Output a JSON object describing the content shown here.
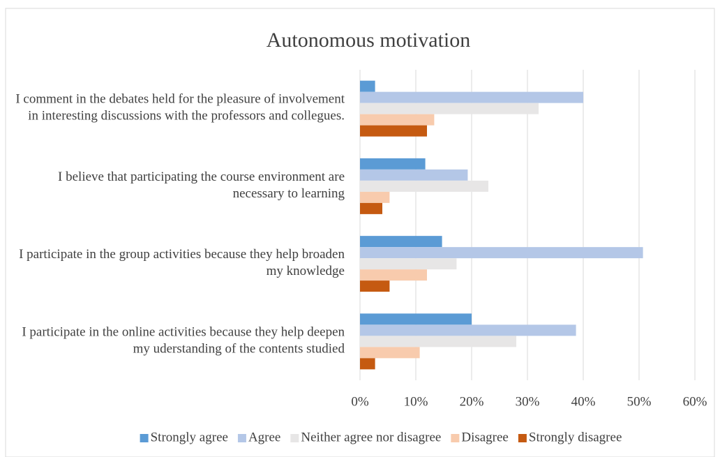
{
  "chart_data": {
    "type": "bar",
    "orientation": "horizontal",
    "title": "Autonomous motivation",
    "categories": [
      "I comment in the debates held for the pleasure of involvement in interesting discussions with the professors and collegues.",
      "I believe that participating the course environment are necessary to learning",
      "I participate in the group activities because they help broaden my knowledge",
      "I participate in the online activities because they help deepen my uderstanding of the contents studied"
    ],
    "series": [
      {
        "name": "Strongly agree",
        "color": "#5b9bd5",
        "values": [
          2.7,
          11.7,
          14.7,
          20
        ]
      },
      {
        "name": "Agree",
        "color": "#b4c7e7",
        "values": [
          40,
          19.3,
          50.7,
          38.7
        ]
      },
      {
        "name": "Neither agree nor disagree",
        "color": "#e7e6e6",
        "values": [
          32,
          23,
          17.3,
          28
        ]
      },
      {
        "name": "Disagree",
        "color": "#f8cbad",
        "values": [
          13.3,
          5.3,
          12,
          10.7
        ]
      },
      {
        "name": "Strongly disagree",
        "color": "#c55a11",
        "values": [
          12,
          4,
          5.3,
          2.7
        ]
      }
    ],
    "xlim": [
      0,
      60
    ],
    "xticks": [
      {
        "value": 0,
        "label": "0%"
      },
      {
        "value": 10,
        "label": "10%"
      },
      {
        "value": 20,
        "label": "20%"
      },
      {
        "value": 30,
        "label": "30%"
      },
      {
        "value": 40,
        "label": "40%"
      },
      {
        "value": 50,
        "label": "50%"
      },
      {
        "value": 60,
        "label": "60%"
      }
    ],
    "grid": true,
    "legend": "bottom"
  }
}
